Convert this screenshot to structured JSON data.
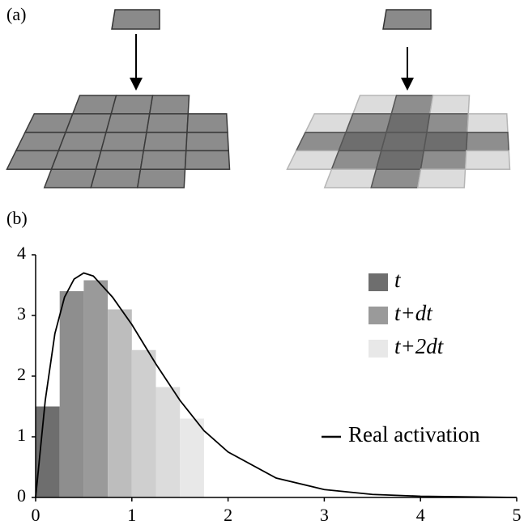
{
  "panel_a_label": "(a)",
  "chart_data": {
    "type": "histogram",
    "panel_label": "(b)",
    "bins": [
      0,
      0.25,
      0.5,
      0.75,
      1,
      1.25,
      1.5,
      1.75
    ],
    "values": [
      1.5,
      3.4,
      3.58,
      3.1,
      2.43,
      1.82,
      1.3
    ],
    "colors": [
      "#6e6e6e",
      "#8e8e8e",
      "#9a9a9a",
      "#bdbdbd",
      "#cfcfcf",
      "#dcdcdc",
      "#e8e8e8"
    ],
    "legend": [
      {
        "label": "t",
        "color": "#6e6e6e"
      },
      {
        "label": "t+dt",
        "color": "#9a9a9a"
      },
      {
        "label": "t+2dt",
        "color": "#e8e8e8"
      }
    ],
    "curve": {
      "name": "Real activation",
      "color": "#000000",
      "x": [
        0,
        0.1,
        0.2,
        0.3,
        0.4,
        0.5,
        0.6,
        0.8,
        1,
        1.25,
        1.5,
        1.75,
        2,
        2.5,
        3,
        3.5,
        4,
        4.5,
        5
      ],
      "y": [
        0,
        1.6,
        2.7,
        3.3,
        3.6,
        3.7,
        3.65,
        3.3,
        2.85,
        2.2,
        1.6,
        1.1,
        0.75,
        0.32,
        0.13,
        0.05,
        0.02,
        0.01,
        0
      ]
    },
    "xlim": [
      0,
      5
    ],
    "ylim": [
      0,
      4
    ],
    "xticks": [
      0,
      1,
      2,
      3,
      4,
      5
    ],
    "yticks": [
      0,
      1,
      2,
      3,
      4
    ]
  }
}
